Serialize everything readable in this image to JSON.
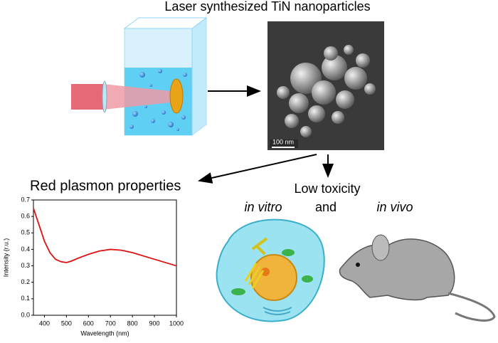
{
  "header": {
    "title": "Laser synthesized TiN nanoparticles"
  },
  "sem": {
    "scale_label": "100 nm"
  },
  "toxicity": {
    "title": "Low toxicity",
    "in_vitro": "in vitro",
    "and": "and",
    "in_vivo": "in vivo"
  },
  "chart_data": {
    "type": "line",
    "title": "Red plasmon properties",
    "x_label": "Wavelength (nm)",
    "y_label": "Intensity (r.u.)",
    "x": [
      350,
      375,
      400,
      425,
      450,
      475,
      500,
      525,
      550,
      600,
      650,
      700,
      750,
      800,
      850,
      900,
      950,
      1000
    ],
    "values": [
      0.65,
      0.55,
      0.45,
      0.38,
      0.34,
      0.325,
      0.32,
      0.33,
      0.345,
      0.37,
      0.39,
      0.4,
      0.395,
      0.38,
      0.36,
      0.34,
      0.32,
      0.3
    ],
    "color": "#e01010",
    "xlim": [
      350,
      1000
    ],
    "xticks": [
      400,
      500,
      600,
      700,
      800,
      900,
      1000
    ],
    "ylim": [
      0,
      0.7
    ],
    "yticks": [
      {
        "value": 0,
        "label": "0.0"
      },
      0.1,
      0.2,
      0.3,
      0.4,
      0.5,
      0.6,
      0.7
    ]
  }
}
